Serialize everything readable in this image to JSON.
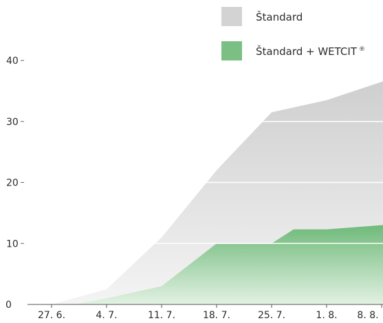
{
  "chart_data": {
    "type": "area",
    "x": [
      "27. 6.",
      "4. 7.",
      "11. 7.",
      "18. 7.",
      "25. 7.",
      "1. 8.",
      "8. 8."
    ],
    "yticks": [
      0,
      10,
      20,
      30,
      40
    ],
    "ylim": [
      0,
      45
    ],
    "grid": true,
    "legend_position": "top-right",
    "series": [
      {
        "name": "Štandard",
        "color": "#cccccc",
        "points": [
          [
            0,
            0
          ],
          [
            1,
            2.5
          ],
          [
            2,
            11
          ],
          [
            3,
            22
          ],
          [
            4,
            31.5
          ],
          [
            5,
            33.5
          ],
          [
            6,
            36.5
          ]
        ]
      },
      {
        "name": "Štandard + WETCIT",
        "name_superscript": "®",
        "color": "#7cbf84",
        "points": [
          [
            0.4,
            0
          ],
          [
            1,
            1
          ],
          [
            2,
            3
          ],
          [
            3,
            10
          ],
          [
            4,
            10
          ],
          [
            4.4,
            12.3
          ],
          [
            5,
            12.3
          ],
          [
            6,
            13
          ]
        ]
      }
    ]
  }
}
